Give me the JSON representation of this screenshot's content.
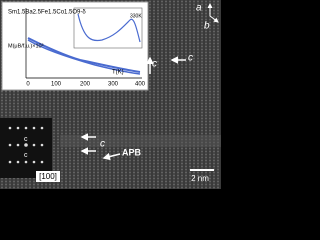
{
  "inset": {
    "formula": "Sm1.5Ba2.5Fe1.5Co1.5O9-δ",
    "y_label": "M(μB/f.u.)×10³",
    "x_label": "T(K)",
    "x_ticks": [
      "0",
      "100",
      "200",
      "300",
      "400"
    ],
    "inner_label": "330K"
  },
  "axes": {
    "a": "a",
    "b": "b"
  },
  "labels": {
    "c_top": "c",
    "c_right": "c",
    "c_mid": "c",
    "apb": "APB",
    "scale": "2 nm",
    "zone": "[100]",
    "fft_c1": "c",
    "fft_c2": "c"
  }
}
